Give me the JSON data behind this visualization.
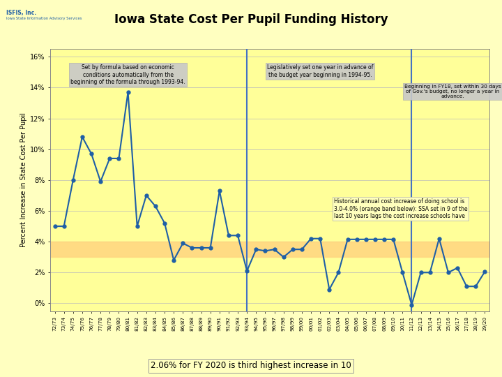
{
  "title": "Iowa State Cost Per Pupil Funding History",
  "ylabel": "Percent Increase in State Cost Per Pupil",
  "background_color": "#FFFFC0",
  "plot_bg_color": "#FFFF99",
  "line_color": "#1F5FA6",
  "marker_color": "#1F5FA6",
  "vline_color": "#4472C4",
  "orange_band_low": 3.0,
  "orange_band_high": 4.0,
  "orange_band_color": "#FFD580",
  "footer_bg": "#4BACC6",
  "footer_text": "2.06% for FY 2020 is third highest increase in 10",
  "xlabels": [
    "72/73",
    "73/74",
    "74/75",
    "75/76",
    "76/77",
    "77/78",
    "78/79",
    "79/80",
    "80/81",
    "81/82",
    "82/83",
    "83/84",
    "84/85",
    "85/86",
    "86/87",
    "87/88",
    "88/89",
    "89/90",
    "90/91",
    "91/92",
    "92/93",
    "93/94",
    "94/95",
    "95/96",
    "96/97",
    "97/98",
    "98/99",
    "99/00",
    "00/01",
    "01/02",
    "02/03",
    "03/04",
    "04/05",
    "05/06",
    "06/07",
    "07/08",
    "08/09",
    "09/10",
    "10/11",
    "11/12",
    "12/13",
    "13/14",
    "14/15",
    "15/16",
    "16/17",
    "17/18",
    "18/19",
    "19/20"
  ],
  "values": [
    5.0,
    5.0,
    8.0,
    10.8,
    9.7,
    7.9,
    9.4,
    9.4,
    13.7,
    5.0,
    7.0,
    6.3,
    5.2,
    2.8,
    3.9,
    3.6,
    3.6,
    3.6,
    7.3,
    4.4,
    4.4,
    2.1,
    3.5,
    3.4,
    3.5,
    3.0,
    3.5,
    3.5,
    4.2,
    4.2,
    0.9,
    2.0,
    4.15,
    4.15,
    4.15,
    4.15,
    4.15,
    4.15,
    2.0,
    -0.1,
    2.0,
    2.0,
    4.2,
    2.0,
    2.3,
    1.1,
    1.1,
    2.06
  ],
  "vline1_idx": 21,
  "vline2_idx": 39,
  "ylim": [
    -0.5,
    16.5
  ],
  "yticks": [
    0,
    2,
    4,
    6,
    8,
    10,
    12,
    14,
    16
  ],
  "ytick_labels": [
    "0%",
    "2%",
    "4%",
    "6%",
    "8%",
    "10%",
    "12%",
    "14%",
    "16%"
  ]
}
